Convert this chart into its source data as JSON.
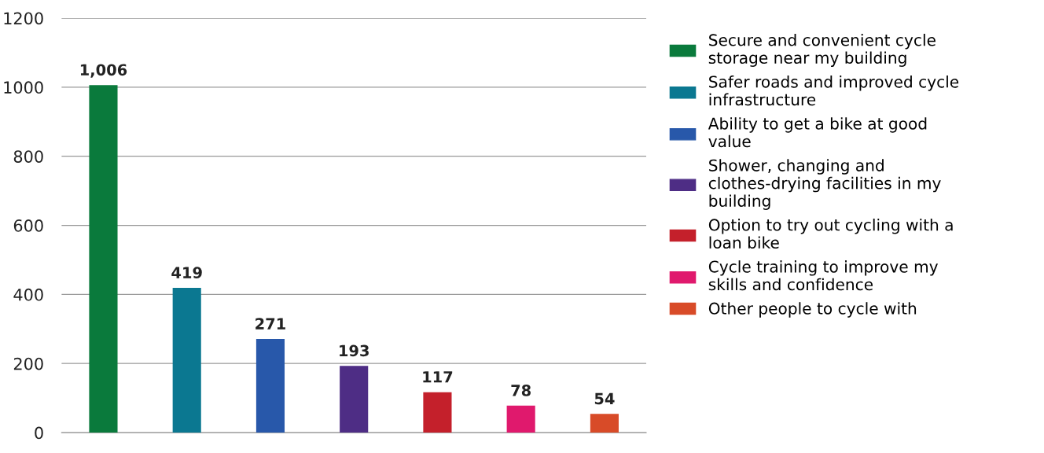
{
  "chart_data": {
    "type": "bar",
    "categories": [
      null,
      null,
      null,
      null,
      null,
      null,
      null
    ],
    "series": [
      {
        "name": "Secure and convenient cycle storage near my building",
        "color": "#0a7a3c",
        "values": [
          1006,
          null,
          null,
          null,
          null,
          null,
          null
        ],
        "value_labels": [
          "1,006",
          null,
          null,
          null,
          null,
          null,
          null
        ]
      },
      {
        "name": "Safer roads and improved cycle infrastructure",
        "color": "#0b7891",
        "values": [
          null,
          419,
          null,
          null,
          null,
          null,
          null
        ],
        "value_labels": [
          null,
          "419",
          null,
          null,
          null,
          null,
          null
        ]
      },
      {
        "name": "Ability to get a bike at good value",
        "color": "#2858aa",
        "values": [
          null,
          null,
          271,
          null,
          null,
          null,
          null
        ],
        "value_labels": [
          null,
          null,
          "271",
          null,
          null,
          null,
          null
        ]
      },
      {
        "name": "Shower, changing and clothes-drying facilities in my building",
        "color": "#4e2d85",
        "values": [
          null,
          null,
          null,
          193,
          null,
          null,
          null
        ],
        "value_labels": [
          null,
          null,
          null,
          "193",
          null,
          null,
          null
        ]
      },
      {
        "name": "Option to try out cycling with a loan bike",
        "color": "#c4202b",
        "values": [
          null,
          null,
          null,
          null,
          117,
          null,
          null
        ],
        "value_labels": [
          null,
          null,
          null,
          null,
          "117",
          null,
          null
        ]
      },
      {
        "name": "Cycle training to improve my skills and confidence",
        "color": "#e0196d",
        "values": [
          null,
          null,
          null,
          null,
          null,
          78,
          null
        ],
        "value_labels": [
          null,
          null,
          null,
          null,
          null,
          "78",
          null
        ]
      },
      {
        "name": "Other people to cycle with",
        "color": "#d84b28",
        "values": [
          null,
          null,
          null,
          null,
          null,
          null,
          54
        ],
        "value_labels": [
          null,
          null,
          null,
          null,
          null,
          null,
          "54"
        ]
      }
    ],
    "ylim": [
      0,
      1200
    ],
    "yticks": [
      0,
      200,
      400,
      600,
      800,
      1000,
      1200
    ],
    "grid": "y",
    "legend": "right"
  }
}
